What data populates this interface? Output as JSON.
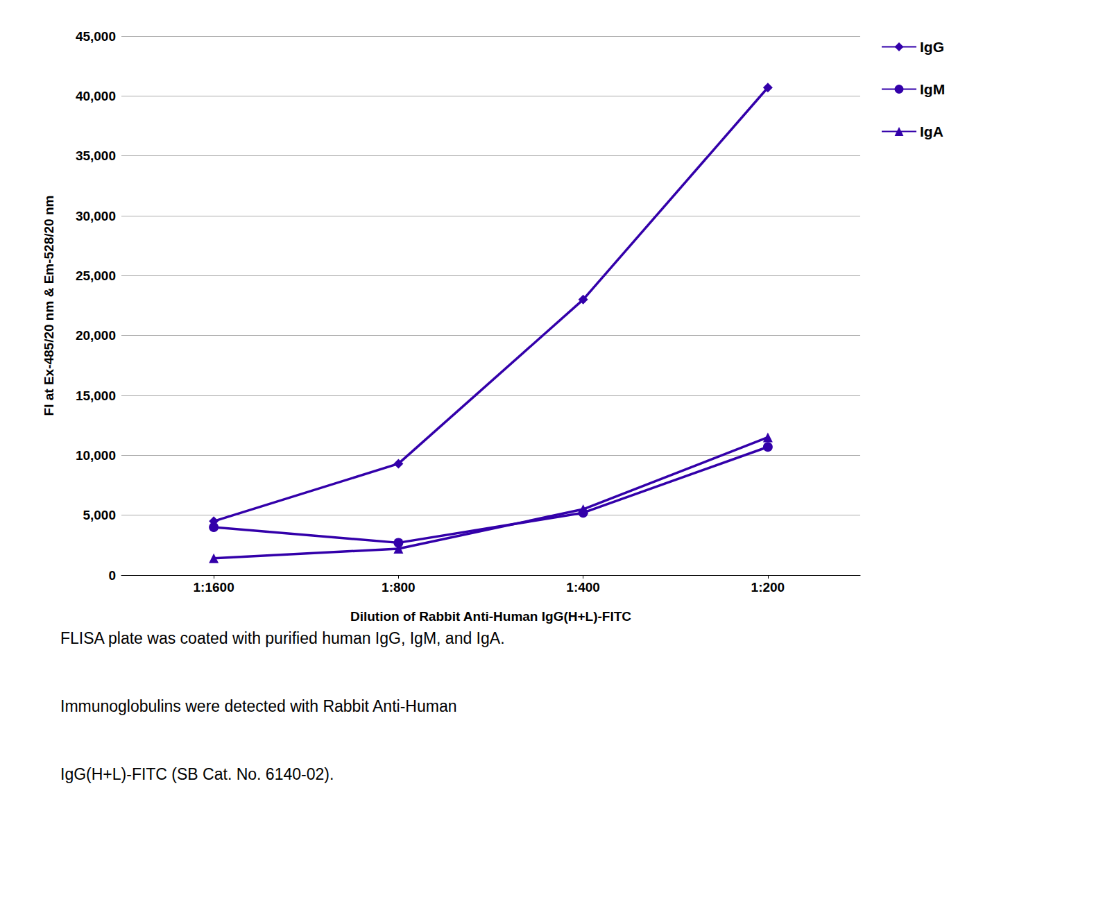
{
  "chart_data": {
    "type": "line",
    "x_label": "Dilution of Rabbit Anti-Human IgG(H+L)-FITC",
    "y_label": "FI at Ex-485/20 nm & Em-528/20 nm",
    "caption": "FLISA plate was coated with purified human IgG, IgM, and IgA.\nImmunoglobulins were detected with Rabbit Anti-Human\nIgG(H+L)-FITC (SB Cat. No. 6140-02).",
    "categories": [
      "1:1600",
      "1:800",
      "1:400",
      "1:200"
    ],
    "series": [
      {
        "name": "IgG",
        "color": "#3300AA",
        "marker": "diamond",
        "values": [
          4500,
          9300,
          23000,
          40700
        ]
      },
      {
        "name": "IgM",
        "color": "#3300AA",
        "marker": "circle",
        "values": [
          4000,
          2700,
          5200,
          10700
        ]
      },
      {
        "name": "IgA",
        "color": "#3300AA",
        "marker": "triangle",
        "values": [
          1400,
          2200,
          5500,
          11500
        ]
      }
    ],
    "ylim": [
      0,
      45000
    ],
    "yticks": [
      0,
      {
        "value": 5000,
        "label": "5,000"
      },
      {
        "value": 10000,
        "label": "10,000"
      },
      {
        "value": 15000,
        "label": "15,000"
      },
      {
        "value": 20000,
        "label": "20,000"
      },
      {
        "value": 25000,
        "label": "25,000"
      },
      {
        "value": 30000,
        "label": "30,000"
      },
      {
        "value": 35000,
        "label": "35,000"
      },
      {
        "value": 40000,
        "label": "40,000"
      },
      {
        "value": 45000,
        "label": "45,000"
      }
    ],
    "grid": true,
    "legend": "right"
  }
}
